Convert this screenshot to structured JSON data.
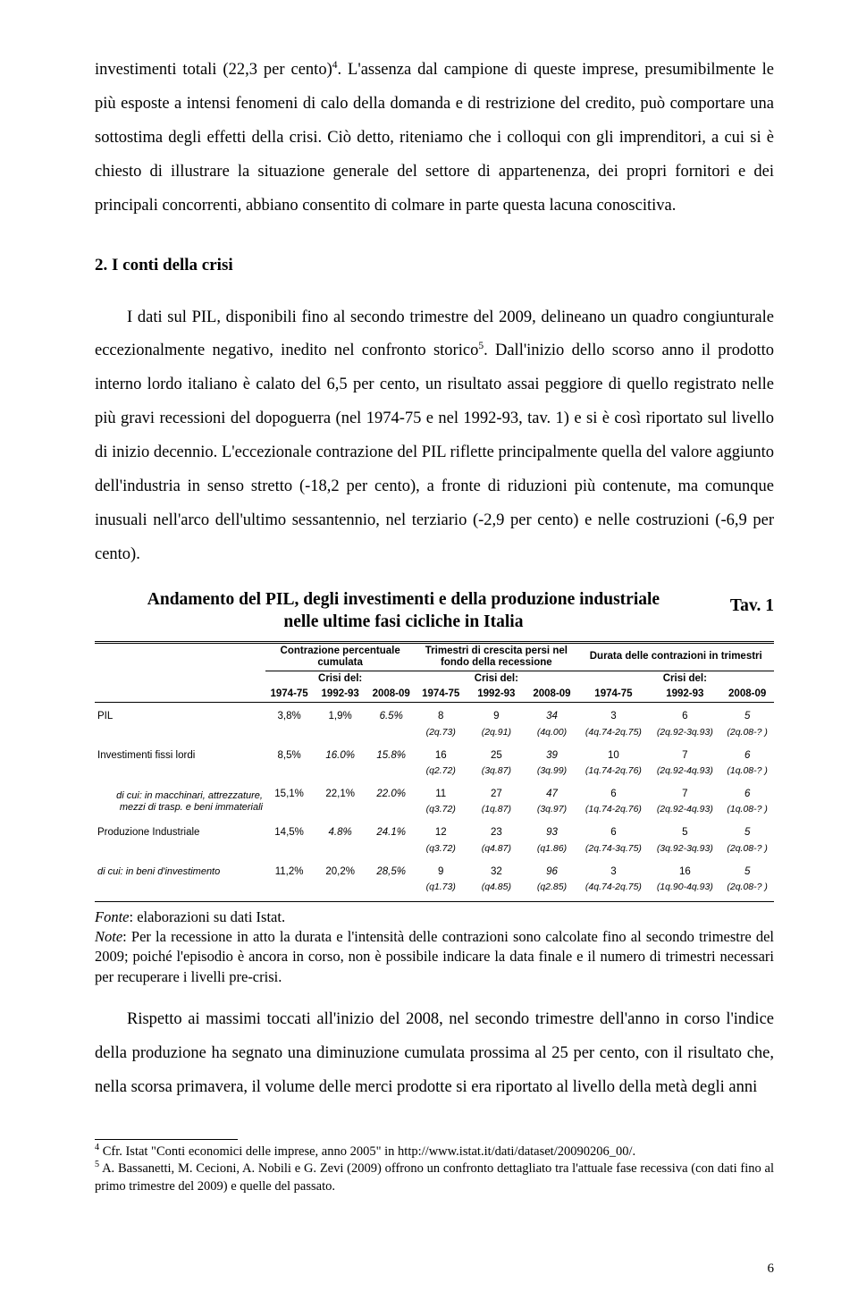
{
  "p1": "investimenti totali (22,3 per cento)",
  "fn_ref1": "4",
  "p1_end": ". L'assenza dal campione di queste imprese, presumibilmente le più esposte a intensi fenomeni di calo della domanda e di restrizione del credito, può comportare una sottostima degli effetti della crisi. Ciò detto, riteniamo che i colloqui con gli imprenditori, a cui si è chiesto di illustrare la situazione generale del settore di appartenenza, dei propri fornitori e dei principali concorrenti, abbiano consentito di colmare in parte questa lacuna conoscitiva.",
  "section_title": "2. I conti della crisi",
  "p2_a": "I dati sul PIL, disponibili fino al secondo trimestre del 2009, delineano un quadro congiunturale eccezionalmente negativo, inedito nel confronto storico",
  "fn_ref2": "5",
  "p2_b": ". Dall'inizio dello scorso anno il prodotto interno lordo italiano è calato del 6,5 per cento, un risultato assai peggiore di quello registrato nelle più gravi recessioni del dopoguerra (nel 1974-75 e nel 1992-93, tav. 1) e si è così riportato sul livello di inizio decennio. L'eccezionale contrazione del PIL riflette principalmente quella del valore aggiunto dell'industria in senso stretto (-18,2 per cento), a fronte di riduzioni più contenute, ma comunque inusuali nell'arco dell'ultimo sessantennio, nel terziario (-2,9 per cento) e nelle costruzioni (-6,9 per cento).",
  "tav_label": "Tav. 1",
  "table_title_l1": "Andamento del PIL, degli investimenti e della produzione industriale",
  "table_title_l2": "nelle ultime fasi cicliche in Italia",
  "hdr_block1_l1": "Contrazione percentuale",
  "hdr_block1_l2": "cumulata",
  "hdr_block2_l1": "Trimestri di crescita persi nel",
  "hdr_block2_l2": "fondo della recessione",
  "hdr_block3": "Durata delle contrazioni in trimestri",
  "crisi_del": "Crisi del:",
  "y1": "1974-75",
  "y2": "1992-93",
  "y3": "2008-09",
  "rows": [
    {
      "label": "PIL",
      "kind": "normal",
      "v": [
        "3,8%",
        "1,9%",
        "6.5%",
        "8",
        "9",
        "34",
        "3",
        "6",
        "5"
      ],
      "it": [
        0,
        0,
        1,
        0,
        0,
        1,
        0,
        0,
        1
      ],
      "sub": [
        "",
        "",
        "",
        "(2q.73)",
        "(2q.91)",
        "(4q.00)",
        "(4q.74-2q.75)",
        "(2q.92-3q.93)",
        "(2q.08-? )"
      ]
    },
    {
      "label": "Investimenti fissi lordi",
      "kind": "normal",
      "v": [
        "8,5%",
        "16.0%",
        "15.8%",
        "16",
        "25",
        "39",
        "10",
        "7",
        "6"
      ],
      "it": [
        0,
        1,
        1,
        0,
        0,
        1,
        0,
        0,
        1
      ],
      "sub": [
        "",
        "",
        "",
        "(q2.72)",
        "(3q.87)",
        "(3q.99)",
        "(1q.74-2q.76)",
        "(2q.92-4q.93)",
        "(1q.08-? )"
      ]
    },
    {
      "label": "di cui: in macchinari, attrezzature, mezzi di trasp. e beni immateriali",
      "kind": "italic",
      "v": [
        "15,1%",
        "22,1%",
        "22.0%",
        "11",
        "27",
        "47",
        "6",
        "7",
        "6"
      ],
      "it": [
        0,
        0,
        1,
        0,
        0,
        1,
        0,
        0,
        1
      ],
      "sub": [
        "",
        "",
        "",
        "(q3.72)",
        "(1q.87)",
        "(3q.97)",
        "(1q.74-2q.76)",
        "(2q.92-4q.93)",
        "(1q.08-? )"
      ]
    },
    {
      "label": "Produzione Industriale",
      "kind": "normal",
      "v": [
        "14,5%",
        "4.8%",
        "24.1%",
        "12",
        "23",
        "93",
        "6",
        "5",
        "5"
      ],
      "it": [
        0,
        1,
        1,
        0,
        0,
        1,
        0,
        0,
        1
      ],
      "sub": [
        "",
        "",
        "",
        "(q3.72)",
        "(q4.87)",
        "(q1.86)",
        "(2q.74-3q.75)",
        "(3q.92-3q.93)",
        "(2q.08-? )"
      ]
    },
    {
      "label": "di cui: in beni d'investimento",
      "kind": "italic-left",
      "v": [
        "11,2%",
        "20,2%",
        "28,5%",
        "9",
        "32",
        "96",
        "3",
        "16",
        "5"
      ],
      "it": [
        0,
        0,
        1,
        0,
        0,
        1,
        0,
        0,
        1
      ],
      "sub": [
        "",
        "",
        "",
        "(q1.73)",
        "(q4.85)",
        "(q2.85)",
        "(4q.74-2q.75)",
        "(1q.90-4q.93)",
        "(2q.08-? )"
      ]
    }
  ],
  "fonte": "Fonte: elaborazioni su dati Istat.",
  "note": "Note: Per la recessione in atto la durata e l'intensità delle contrazioni sono calcolate fino al secondo trimestre del 2009; poiché l'episodio è ancora in corso, non è possibile indicare la data finale e il numero di trimestri necessari per recuperare i livelli pre-crisi.",
  "p3": "Rispetto ai massimi toccati all'inizio del 2008, nel secondo trimestre dell'anno in corso l'indice della produzione ha segnato una diminuzione cumulata prossima al 25 per cento, con il risultato che, nella scorsa primavera, il volume delle merci prodotte si era riportato al livello della metà degli anni",
  "fn4": "Cfr. Istat \"Conti economici delle imprese, anno 2005\" in http://www.istat.it/dati/dataset/20090206_00/.",
  "fn5": "A. Bassanetti, M. Cecioni, A. Nobili e G. Zevi (2009) offrono un confronto dettagliato tra l'attuale fase recessiva (con dati fino al primo trimestre del 2009) e quelle del passato.",
  "page_num": "6"
}
